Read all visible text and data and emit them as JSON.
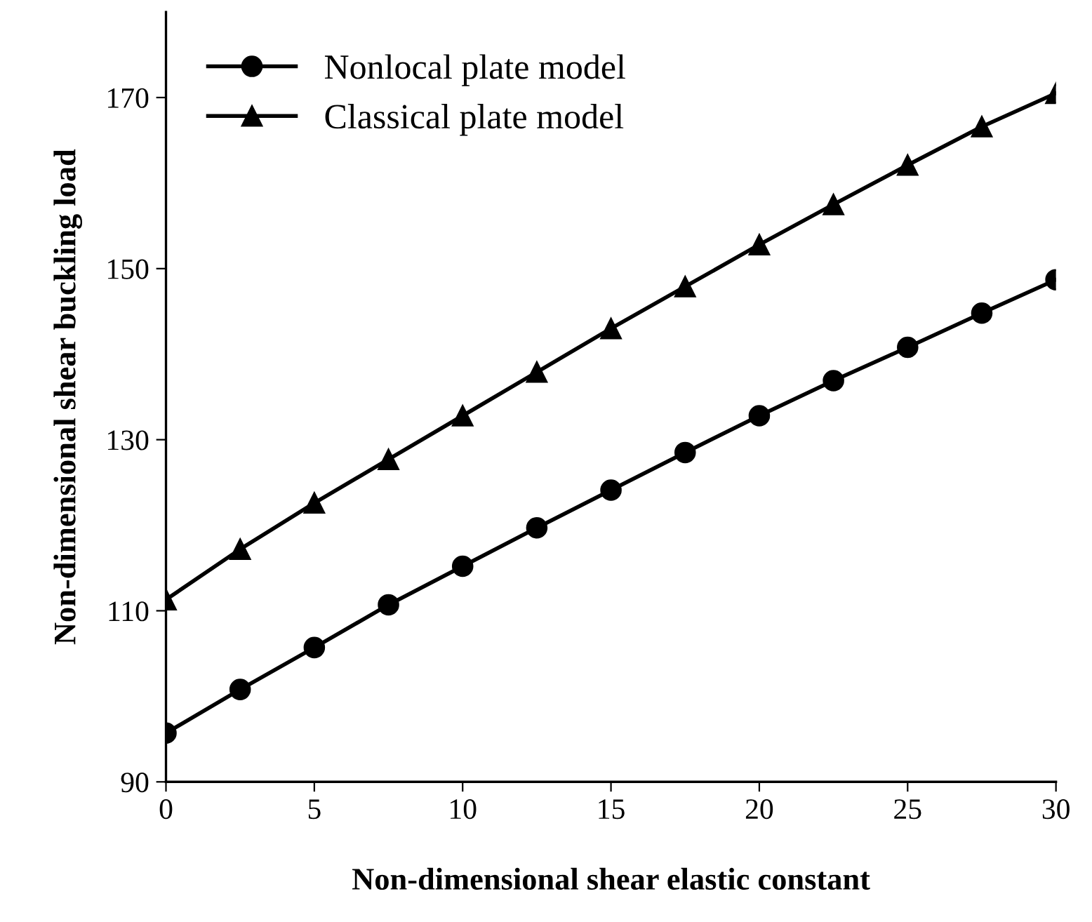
{
  "chart_data": {
    "type": "line",
    "xlabel": "Non-dimensional shear elastic constant",
    "ylabel": "Non-dimensional shear buckling load",
    "x": [
      0,
      2.5,
      5,
      7.5,
      10,
      12.5,
      15,
      17.5,
      20,
      22.5,
      25,
      27.5,
      30
    ],
    "series": [
      {
        "name": "Nonlocal plate model",
        "color": "#000000",
        "marker": "circle",
        "values": [
          95.7,
          100.8,
          105.7,
          110.7,
          115.2,
          119.7,
          124.1,
          128.5,
          132.8,
          136.9,
          140.8,
          144.8,
          148.7
        ]
      },
      {
        "name": "Classical plate model",
        "color": "#000000",
        "marker": "triangle",
        "values": [
          111.3,
          117.2,
          122.6,
          127.7,
          132.8,
          137.9,
          143.0,
          147.9,
          152.8,
          157.5,
          162.1,
          166.6,
          170.5
        ]
      }
    ],
    "xlim": [
      0,
      30
    ],
    "xticks": [
      0,
      5,
      10,
      15,
      20,
      25,
      30
    ],
    "ylim": [
      90,
      180
    ],
    "yticks": [
      90,
      110,
      130,
      150,
      170
    ],
    "grid": false,
    "legend": "top left",
    "line_style": "solid"
  }
}
